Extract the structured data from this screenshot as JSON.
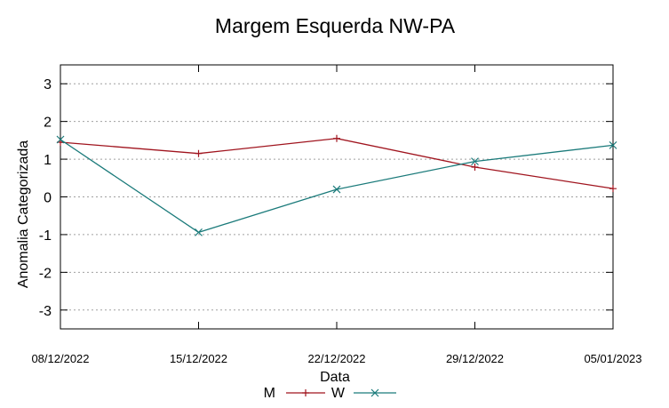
{
  "chart_data": {
    "type": "line",
    "title": "Margem Esquerda NW-PA",
    "xlabel": "Data",
    "ylabel": "Anomalia Categorizada",
    "categories": [
      "08/12/2022",
      "15/12/2022",
      "22/12/2022",
      "29/12/2022",
      "05/01/2023"
    ],
    "ylim": [
      -3.5,
      3.5
    ],
    "yticks": [
      3,
      2,
      1,
      0,
      -1,
      -2,
      -3
    ],
    "grid": "horizontal dotted",
    "legend_position": "bottom",
    "series": [
      {
        "name": "M",
        "marker": "plus",
        "color": "#a0141e",
        "values": [
          1.45,
          1.15,
          1.55,
          0.79,
          0.22
        ]
      },
      {
        "name": "W",
        "marker": "cross",
        "color": "#1a7a7a",
        "values": [
          1.52,
          -0.94,
          0.2,
          0.94,
          1.37
        ]
      }
    ]
  }
}
